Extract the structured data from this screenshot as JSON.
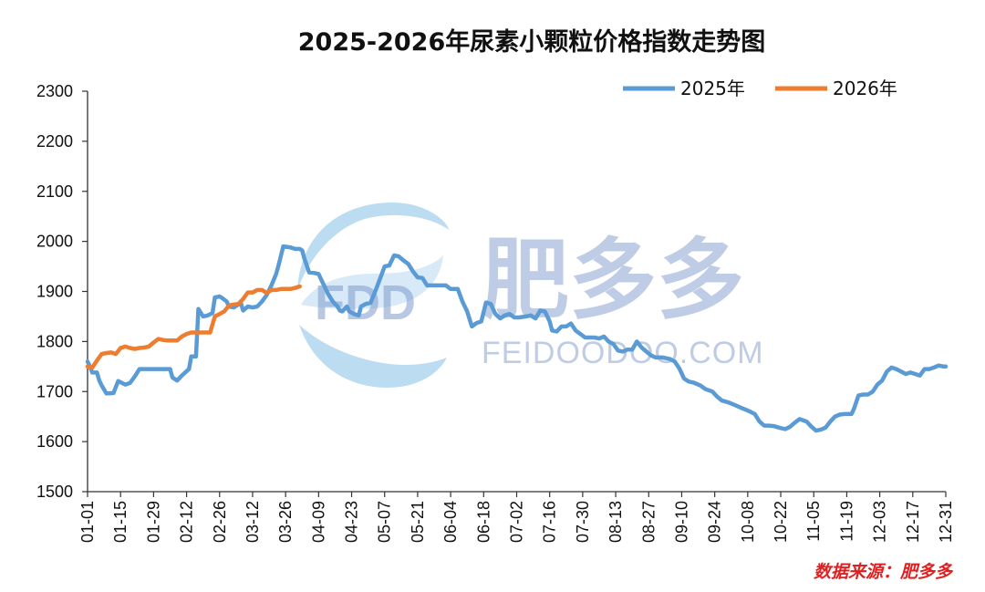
{
  "chart_data": {
    "type": "line",
    "title": "2025-2026年尿素小颗粒价格指数走势图",
    "xlabel": "",
    "ylabel": "",
    "ylim": [
      1500,
      2300
    ],
    "yticks": [
      1500,
      1600,
      1700,
      1800,
      1900,
      2000,
      2100,
      2200,
      2300
    ],
    "xlim": [
      1,
      365
    ],
    "x_unit": "day of year",
    "xtick_labels": [
      "01-01",
      "01-15",
      "01-29",
      "02-12",
      "02-26",
      "03-12",
      "03-26",
      "04-09",
      "04-23",
      "05-07",
      "05-21",
      "06-04",
      "06-18",
      "07-02",
      "07-16",
      "07-30",
      "08-13",
      "08-27",
      "09-10",
      "09-24",
      "10-08",
      "10-22",
      "11-05",
      "11-19",
      "12-03",
      "12-17",
      "12-31"
    ],
    "xtick_days": [
      1,
      15,
      29,
      43,
      57,
      71,
      85,
      99,
      113,
      127,
      141,
      155,
      169,
      183,
      197,
      211,
      225,
      239,
      253,
      267,
      281,
      295,
      309,
      323,
      337,
      351,
      365
    ],
    "grid": false,
    "legend_position": "top-right",
    "series": [
      {
        "name": "2025年",
        "color": "#5b9bd5",
        "points": [
          [
            1,
            1760
          ],
          [
            2,
            1750
          ],
          [
            3,
            1738
          ],
          [
            5,
            1738
          ],
          [
            6,
            1722
          ],
          [
            7,
            1712
          ],
          [
            9,
            1696
          ],
          [
            12,
            1697
          ],
          [
            14,
            1721
          ],
          [
            17,
            1714
          ],
          [
            19,
            1717
          ],
          [
            21,
            1730
          ],
          [
            23,
            1745
          ],
          [
            27,
            1745
          ],
          [
            32,
            1745
          ],
          [
            36,
            1745
          ],
          [
            37,
            1728
          ],
          [
            39,
            1722
          ],
          [
            41,
            1732
          ],
          [
            44,
            1745
          ],
          [
            45,
            1770
          ],
          [
            47,
            1770
          ],
          [
            48,
            1865
          ],
          [
            50,
            1850
          ],
          [
            52,
            1852
          ],
          [
            54,
            1857
          ],
          [
            55,
            1888
          ],
          [
            57,
            1890
          ],
          [
            58,
            1887
          ],
          [
            60,
            1880
          ],
          [
            61,
            1870
          ],
          [
            63,
            1868
          ],
          [
            66,
            1877
          ],
          [
            67,
            1862
          ],
          [
            69,
            1870
          ],
          [
            71,
            1868
          ],
          [
            73,
            1870
          ],
          [
            75,
            1880
          ],
          [
            77,
            1893
          ],
          [
            79,
            1912
          ],
          [
            81,
            1935
          ],
          [
            82,
            1952
          ],
          [
            84,
            1990
          ],
          [
            87,
            1988
          ],
          [
            89,
            1985
          ],
          [
            91,
            1985
          ],
          [
            92,
            1982
          ],
          [
            93,
            1965
          ],
          [
            95,
            1938
          ],
          [
            97,
            1937
          ],
          [
            99,
            1935
          ],
          [
            101,
            1915
          ],
          [
            103,
            1895
          ],
          [
            105,
            1880
          ],
          [
            107,
            1870
          ],
          [
            108,
            1862
          ],
          [
            109,
            1860
          ],
          [
            111,
            1870
          ],
          [
            112,
            1860
          ],
          [
            114,
            1855
          ],
          [
            116,
            1852
          ],
          [
            117,
            1870
          ],
          [
            119,
            1875
          ],
          [
            121,
            1877
          ],
          [
            123,
            1900
          ],
          [
            125,
            1925
          ],
          [
            127,
            1950
          ],
          [
            129,
            1952
          ],
          [
            131,
            1972
          ],
          [
            133,
            1970
          ],
          [
            135,
            1962
          ],
          [
            137,
            1955
          ],
          [
            139,
            1940
          ],
          [
            141,
            1928
          ],
          [
            143,
            1927
          ],
          [
            145,
            1912
          ],
          [
            147,
            1912
          ],
          [
            150,
            1912
          ],
          [
            153,
            1912
          ],
          [
            155,
            1905
          ],
          [
            158,
            1905
          ],
          [
            160,
            1880
          ],
          [
            162,
            1860
          ],
          [
            164,
            1830
          ],
          [
            166,
            1837
          ],
          [
            168,
            1840
          ],
          [
            170,
            1878
          ],
          [
            172,
            1875
          ],
          [
            174,
            1855
          ],
          [
            176,
            1846
          ],
          [
            178,
            1852
          ],
          [
            180,
            1855
          ],
          [
            182,
            1848
          ],
          [
            184,
            1848
          ],
          [
            187,
            1850
          ],
          [
            189,
            1852
          ],
          [
            191,
            1846
          ],
          [
            193,
            1862
          ],
          [
            195,
            1860
          ],
          [
            197,
            1840
          ],
          [
            198,
            1822
          ],
          [
            200,
            1820
          ],
          [
            202,
            1830
          ],
          [
            204,
            1830
          ],
          [
            206,
            1836
          ],
          [
            208,
            1822
          ],
          [
            210,
            1815
          ],
          [
            212,
            1808
          ],
          [
            214,
            1808
          ],
          [
            216,
            1808
          ],
          [
            218,
            1806
          ],
          [
            220,
            1810
          ],
          [
            222,
            1800
          ],
          [
            224,
            1795
          ],
          [
            226,
            1782
          ],
          [
            228,
            1780
          ],
          [
            230,
            1784
          ],
          [
            232,
            1784
          ],
          [
            234,
            1800
          ],
          [
            236,
            1788
          ],
          [
            238,
            1780
          ],
          [
            240,
            1772
          ],
          [
            242,
            1768
          ],
          [
            245,
            1768
          ],
          [
            248,
            1765
          ],
          [
            250,
            1760
          ],
          [
            252,
            1746
          ],
          [
            254,
            1726
          ],
          [
            256,
            1720
          ],
          [
            258,
            1718
          ],
          [
            261,
            1712
          ],
          [
            263,
            1705
          ],
          [
            266,
            1700
          ],
          [
            268,
            1690
          ],
          [
            270,
            1682
          ],
          [
            273,
            1678
          ],
          [
            276,
            1672
          ],
          [
            279,
            1666
          ],
          [
            282,
            1660
          ],
          [
            284,
            1655
          ],
          [
            286,
            1640
          ],
          [
            288,
            1632
          ],
          [
            290,
            1632
          ],
          [
            292,
            1631
          ],
          [
            295,
            1627
          ],
          [
            297,
            1625
          ],
          [
            299,
            1630
          ],
          [
            301,
            1638
          ],
          [
            303,
            1645
          ],
          [
            306,
            1640
          ],
          [
            308,
            1630
          ],
          [
            310,
            1622
          ],
          [
            312,
            1624
          ],
          [
            314,
            1628
          ],
          [
            316,
            1640
          ],
          [
            318,
            1650
          ],
          [
            320,
            1654
          ],
          [
            322,
            1655
          ],
          [
            325,
            1655
          ],
          [
            326,
            1665
          ],
          [
            328,
            1692
          ],
          [
            330,
            1694
          ],
          [
            332,
            1694
          ],
          [
            334,
            1700
          ],
          [
            336,
            1714
          ],
          [
            338,
            1722
          ],
          [
            340,
            1740
          ],
          [
            342,
            1748
          ],
          [
            344,
            1745
          ],
          [
            346,
            1740
          ],
          [
            348,
            1735
          ],
          [
            350,
            1738
          ],
          [
            352,
            1735
          ],
          [
            354,
            1732
          ],
          [
            356,
            1745
          ],
          [
            358,
            1745
          ],
          [
            360,
            1748
          ],
          [
            362,
            1752
          ],
          [
            364,
            1750
          ],
          [
            365,
            1750
          ]
        ]
      },
      {
        "name": "2026年",
        "color": "#ed7d31",
        "points": [
          [
            1,
            1750
          ],
          [
            3,
            1748
          ],
          [
            5,
            1762
          ],
          [
            7,
            1775
          ],
          [
            9,
            1777
          ],
          [
            11,
            1778
          ],
          [
            13,
            1775
          ],
          [
            15,
            1787
          ],
          [
            17,
            1790
          ],
          [
            19,
            1787
          ],
          [
            21,
            1785
          ],
          [
            23,
            1787
          ],
          [
            25,
            1788
          ],
          [
            27,
            1790
          ],
          [
            29,
            1798
          ],
          [
            31,
            1805
          ],
          [
            33,
            1803
          ],
          [
            35,
            1802
          ],
          [
            37,
            1802
          ],
          [
            39,
            1802
          ],
          [
            41,
            1810
          ],
          [
            43,
            1815
          ],
          [
            45,
            1818
          ],
          [
            47,
            1818
          ],
          [
            49,
            1818
          ],
          [
            51,
            1818
          ],
          [
            53,
            1818
          ],
          [
            55,
            1850
          ],
          [
            57,
            1855
          ],
          [
            59,
            1860
          ],
          [
            61,
            1872
          ],
          [
            63,
            1874
          ],
          [
            65,
            1875
          ],
          [
            67,
            1885
          ],
          [
            69,
            1898
          ],
          [
            71,
            1898
          ],
          [
            73,
            1903
          ],
          [
            75,
            1903
          ],
          [
            77,
            1897
          ],
          [
            79,
            1903
          ],
          [
            81,
            1903
          ],
          [
            83,
            1905
          ],
          [
            85,
            1905
          ],
          [
            87,
            1905
          ],
          [
            89,
            1907
          ],
          [
            91,
            1910
          ]
        ]
      }
    ]
  },
  "watermark": {
    "logo_text": "FDD",
    "brand_name": "肥多多",
    "url": "FEIDOODOO.COM"
  },
  "source_note": "数据来源：肥多多"
}
